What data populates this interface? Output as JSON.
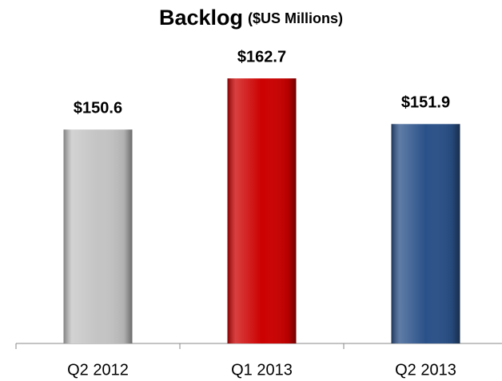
{
  "chart_data": {
    "type": "bar",
    "title": "Backlog",
    "subtitle": "($US Millions)",
    "categories": [
      "Q2 2012",
      "Q1 2013",
      "Q2 2013"
    ],
    "values": [
      150.6,
      162.7,
      151.9
    ],
    "value_labels": [
      "$150.6",
      "$162.7",
      "$151.9"
    ],
    "colors": [
      "#c4c4c4",
      "#cc0000",
      "#2a5189"
    ],
    "ylim": [
      100,
      165
    ]
  }
}
